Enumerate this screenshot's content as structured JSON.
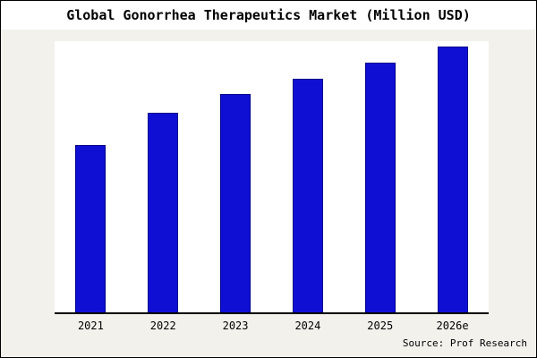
{
  "title": "Global Gonorrhea Therapeutics Market (Million USD)",
  "source": "Source: Prof Research",
  "colors": {
    "bar_fill": "#0f0fd4",
    "bar_border": "#00008b",
    "background": "#f2f1ec",
    "plot_background": "#ffffff",
    "frame_border": "#000000"
  },
  "chart_data": {
    "type": "bar",
    "categories": [
      "2021",
      "2022",
      "2023",
      "2024",
      "2025",
      "2026e"
    ],
    "values": [
      63,
      75,
      82,
      88,
      94,
      100
    ],
    "title": "Global Gonorrhea Therapeutics Market (Million USD)",
    "xlabel": "",
    "ylabel": "",
    "ylim": [
      0,
      102
    ],
    "grid": false,
    "legend": false
  }
}
